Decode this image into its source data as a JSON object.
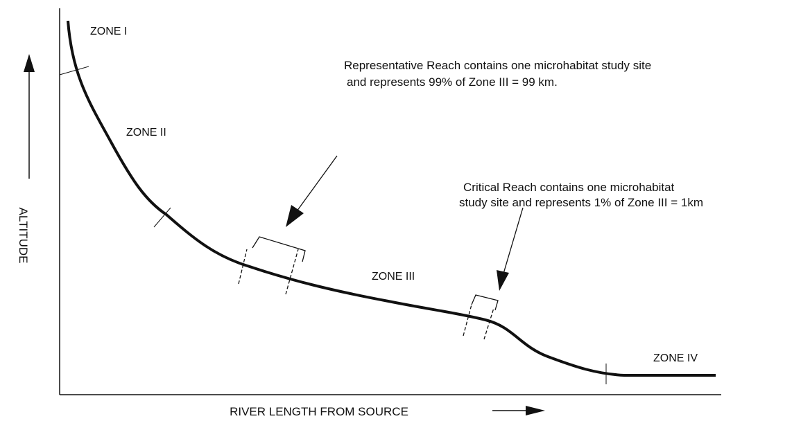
{
  "axes": {
    "y_label": "ALTITUDE",
    "x_label": "RIVER LENGTH FROM SOURCE"
  },
  "zones": [
    "ZONE I",
    "ZONE II",
    "ZONE III",
    "ZONE IV"
  ],
  "annotations": {
    "representative": [
      "Representative Reach contains one microhabitat study site",
      "and represents 99% of Zone III = 99 km."
    ],
    "critical": [
      "Critical Reach contains one microhabitat",
      "study site and represents 1% of Zone III = 1km"
    ]
  }
}
